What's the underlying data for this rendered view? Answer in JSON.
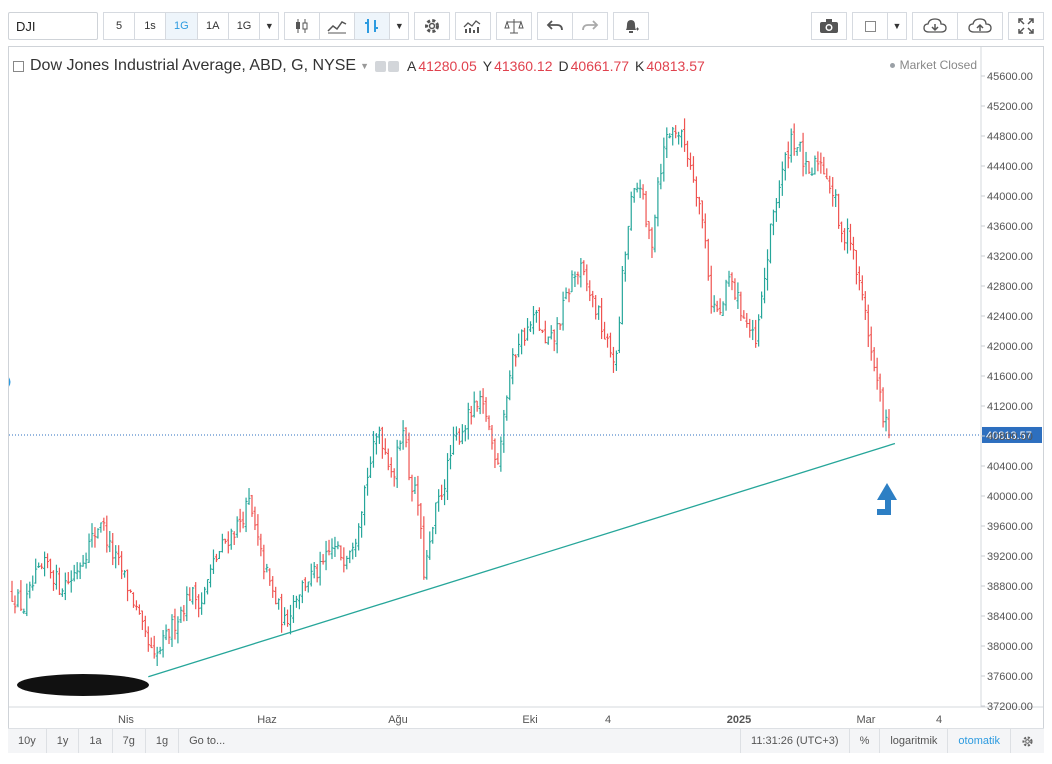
{
  "toolbar": {
    "symbol": "DJI",
    "intervals": [
      "5",
      "1s",
      "1G",
      "1A",
      "1G"
    ],
    "active_interval_index": 2,
    "icons": [
      "candles-icon",
      "line-chart-icon",
      "bar-chart-icon",
      "caret-down-icon",
      "gear-icon",
      "indicators-icon",
      "compare-icon",
      "undo-icon",
      "redo-icon",
      "alert-icon",
      "camera-icon",
      "fullscreen-icon"
    ]
  },
  "legend": {
    "title": "Dow Jones Industrial Average, ABD, G, NYSE",
    "o_label": "A",
    "o_value": "41280.05",
    "h_label": "Y",
    "h_value": "41360.12",
    "l_label": "D",
    "l_value": "40661.77",
    "c_label": "K",
    "c_value": "40813.57"
  },
  "market_status": "Market Closed",
  "bottom_bar": {
    "ranges": [
      "10y",
      "1y",
      "1a",
      "7g",
      "1g",
      "Go to..."
    ],
    "time": "11:31:26 (UTC+3)",
    "percent": "%",
    "log": "logaritmik",
    "auto": "otomatik"
  },
  "colors": {
    "up": "#26a69a",
    "down": "#ef5350",
    "trendline": "#26a69a",
    "price_label_bg": "#2d6fbf",
    "arrow": "#2d7fc4"
  },
  "chart_data": {
    "type": "candlestick",
    "y_axis_ticks": [
      45600,
      45200,
      44800,
      44400,
      44000,
      43600,
      43200,
      42800,
      42400,
      42000,
      41600,
      41200,
      40800,
      40400,
      40000,
      39600,
      39200,
      38800,
      38400,
      38000,
      37600,
      37200
    ],
    "ylim": [
      37200,
      45800
    ],
    "x_axis_labels": [
      "Nis",
      "Haz",
      "Ağu",
      "Eki",
      "4",
      "2025",
      "Mar",
      "4"
    ],
    "last_price": 40813.57,
    "last_price_label": "40813.57",
    "close_path": [
      [
        0,
        38700
      ],
      [
        4,
        38500
      ],
      [
        8,
        38900
      ],
      [
        12,
        39100
      ],
      [
        16,
        38800
      ],
      [
        20,
        38900
      ],
      [
        24,
        39200
      ],
      [
        28,
        39500
      ],
      [
        30,
        39700
      ],
      [
        33,
        39300
      ],
      [
        37,
        39000
      ],
      [
        41,
        38600
      ],
      [
        44,
        38200
      ],
      [
        48,
        37800
      ],
      [
        52,
        38100
      ],
      [
        56,
        38400
      ],
      [
        60,
        38700
      ],
      [
        64,
        38600
      ],
      [
        68,
        39100
      ],
      [
        72,
        39400
      ],
      [
        76,
        39600
      ],
      [
        80,
        39900
      ],
      [
        84,
        39200
      ],
      [
        88,
        38700
      ],
      [
        92,
        38300
      ],
      [
        96,
        38700
      ],
      [
        100,
        38900
      ],
      [
        104,
        39000
      ],
      [
        108,
        39300
      ],
      [
        112,
        39200
      ],
      [
        116,
        39500
      ],
      [
        120,
        40300
      ],
      [
        124,
        40900
      ],
      [
        126,
        40600
      ],
      [
        129,
        40300
      ],
      [
        132,
        41000
      ],
      [
        134,
        40300
      ],
      [
        137,
        39900
      ],
      [
        139,
        39000
      ],
      [
        141,
        39300
      ],
      [
        143,
        39800
      ],
      [
        146,
        40200
      ],
      [
        149,
        40700
      ],
      [
        152,
        40900
      ],
      [
        155,
        41100
      ],
      [
        158,
        41200
      ],
      [
        160,
        41100
      ],
      [
        162,
        40700
      ],
      [
        164,
        40500
      ],
      [
        166,
        41100
      ],
      [
        168,
        41600
      ],
      [
        171,
        42100
      ],
      [
        174,
        42200
      ],
      [
        177,
        42400
      ],
      [
        180,
        42000
      ],
      [
        183,
        42100
      ],
      [
        186,
        42500
      ],
      [
        189,
        42900
      ],
      [
        192,
        43000
      ],
      [
        195,
        42700
      ],
      [
        198,
        42400
      ],
      [
        201,
        42000
      ],
      [
        204,
        41800
      ],
      [
        206,
        42900
      ],
      [
        209,
        43900
      ],
      [
        212,
        44200
      ],
      [
        214,
        43600
      ],
      [
        216,
        43400
      ],
      [
        218,
        44200
      ],
      [
        221,
        44800
      ],
      [
        224,
        44900
      ],
      [
        227,
        44700
      ],
      [
        230,
        44300
      ],
      [
        232,
        43900
      ],
      [
        234,
        43400
      ],
      [
        236,
        42600
      ],
      [
        239,
        42400
      ],
      [
        242,
        42900
      ],
      [
        245,
        42600
      ],
      [
        248,
        42300
      ],
      [
        251,
        42000
      ],
      [
        254,
        42900
      ],
      [
        257,
        43800
      ],
      [
        260,
        44300
      ],
      [
        263,
        44800
      ],
      [
        266,
        44600
      ],
      [
        269,
        44200
      ],
      [
        272,
        44500
      ],
      [
        275,
        44300
      ],
      [
        278,
        43900
      ],
      [
        280,
        43400
      ],
      [
        282,
        43600
      ],
      [
        284,
        43200
      ],
      [
        286,
        42800
      ],
      [
        288,
        42500
      ],
      [
        290,
        41900
      ],
      [
        292,
        41500
      ],
      [
        294,
        41100
      ],
      [
        296,
        40813
      ]
    ],
    "trendline": {
      "from": [
        46,
        37590
      ],
      "to": [
        298,
        40700
      ]
    }
  }
}
